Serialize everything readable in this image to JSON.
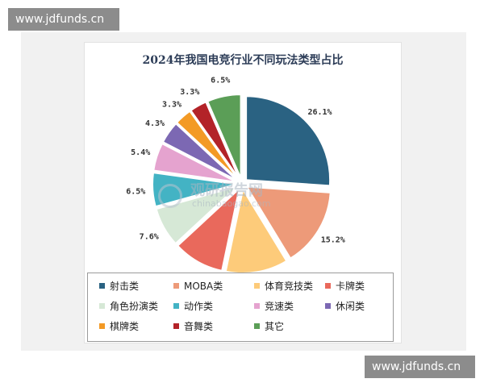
{
  "watermark": {
    "text": "www.jdfunds.cn"
  },
  "logo": {
    "name_cn": "观研报告网",
    "domain": "chinabaogao.com"
  },
  "chart_data": {
    "type": "pie",
    "title": "2024年我国电竞行业不同玩法类型占比",
    "legend_position": "bottom",
    "slices": [
      {
        "label": "射击类",
        "value": 26.1,
        "value_label": "26.1%",
        "color": "#2a6282"
      },
      {
        "label": "MOBA类",
        "value": 15.2,
        "value_label": "15.2%",
        "color": "#ed9a79"
      },
      {
        "label": "体育竞技类",
        "value": 12.0,
        "value_label": "12.0%",
        "color": "#fdcb7a"
      },
      {
        "label": "卡牌类",
        "value": 9.8,
        "value_label": "9.8%",
        "color": "#e9695c"
      },
      {
        "label": "角色扮演类",
        "value": 7.6,
        "value_label": "7.6%",
        "color": "#d6e8d6"
      },
      {
        "label": "动作类",
        "value": 6.5,
        "value_label": "6.5%",
        "color": "#43b3c4"
      },
      {
        "label": "竞速类",
        "value": 5.4,
        "value_label": "5.4%",
        "color": "#e5a3cf"
      },
      {
        "label": "休闲类",
        "value": 4.3,
        "value_label": "4.3%",
        "color": "#7c68b3"
      },
      {
        "label": "棋牌类",
        "value": 3.3,
        "value_label": "3.3%",
        "color": "#f39a25"
      },
      {
        "label": "音舞类",
        "value": 3.3,
        "value_label": "3.3%",
        "color": "#b32328"
      },
      {
        "label": "其它",
        "value": 6.5,
        "value_label": "6.5%",
        "color": "#5b9e57"
      }
    ]
  }
}
